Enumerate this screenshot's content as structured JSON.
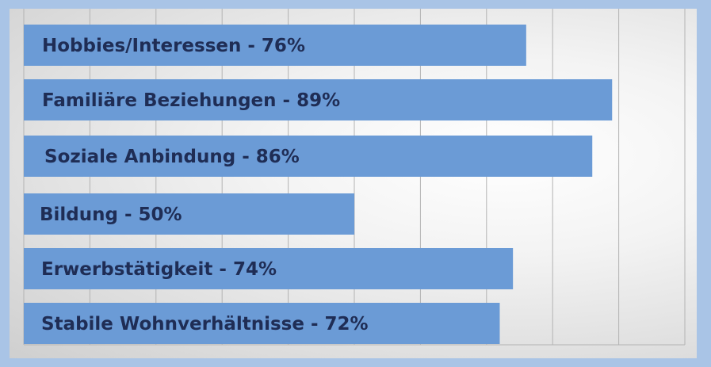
{
  "chart_data": {
    "type": "bar",
    "orientation": "horizontal",
    "categories": [
      "Hobbies/Interessen - 76%",
      "Familiäre Beziehungen - 89%",
      "Soziale Anbindung - 86%",
      "Bildung - 50%",
      "Erwerbstätigkeit - 74%",
      "Stabile Wohnverhältnisse - 72%"
    ],
    "values": [
      76,
      89,
      86,
      50,
      74,
      72
    ],
    "xlim": [
      0,
      100
    ],
    "grid": true,
    "legend": "none",
    "colors": {
      "bar": "#6b9bd6",
      "label": "#1f2d55",
      "grid": "#b3b3b3",
      "background": "#a9c4e6"
    }
  }
}
